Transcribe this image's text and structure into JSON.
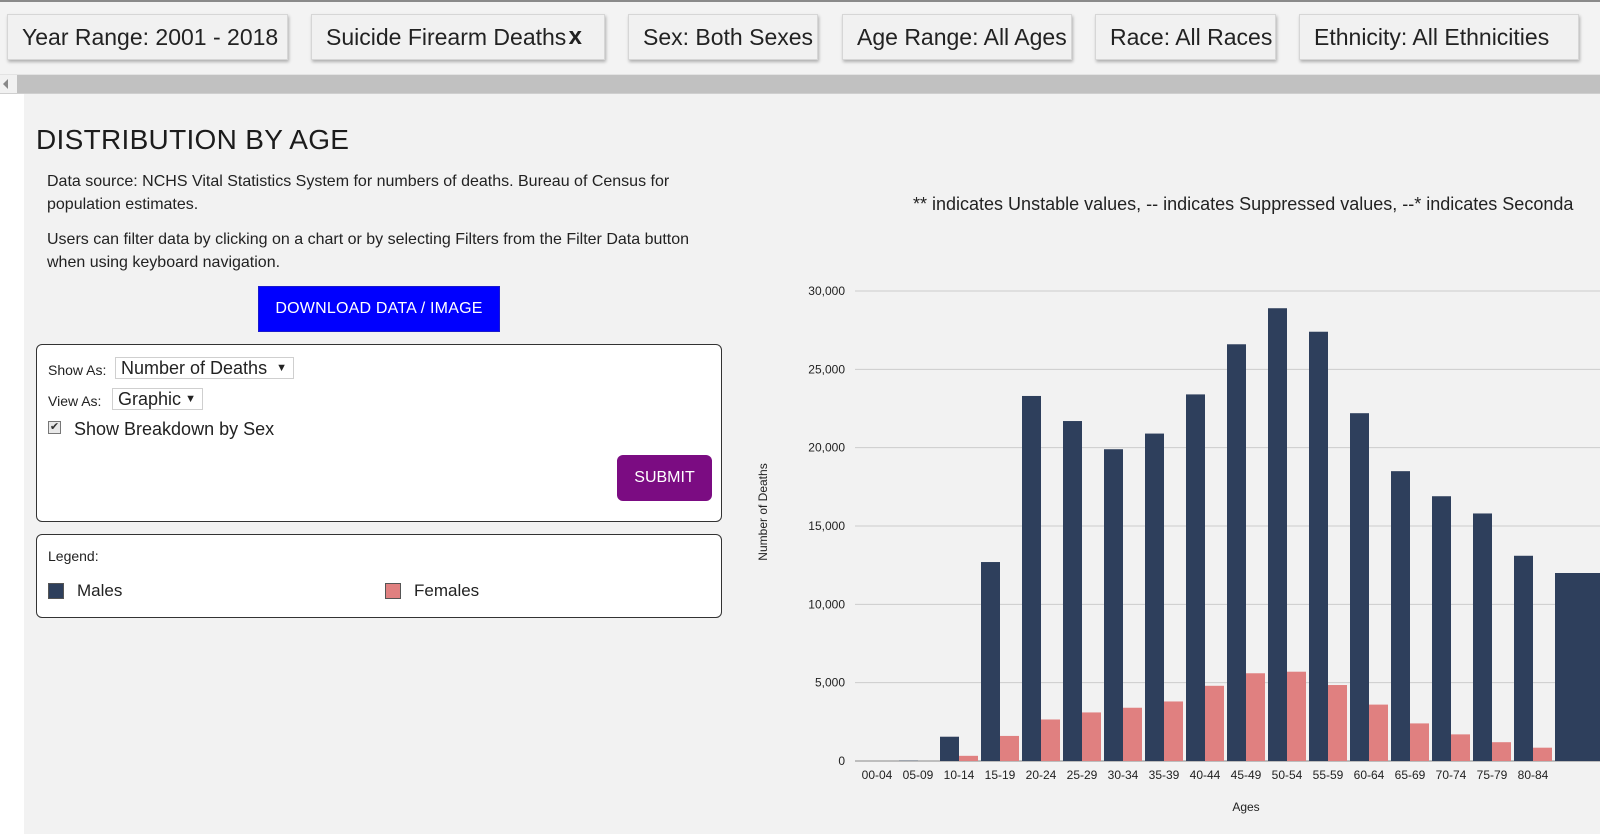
{
  "filters": [
    {
      "label": "Year Range: 2001 - 2018",
      "removable": false
    },
    {
      "label": "Suicide Firearm Deaths",
      "removable": true,
      "remove_glyph": "x"
    },
    {
      "label": "Sex: Both Sexes",
      "removable": false
    },
    {
      "label": "Age Range: All Ages",
      "removable": false
    },
    {
      "label": "Race: All Races",
      "removable": false
    },
    {
      "label": "Ethnicity: All Ethnicities",
      "removable": false
    }
  ],
  "page": {
    "title": "DISTRIBUTION BY AGE",
    "source_text": "Data source: NCHS Vital Statistics System for numbers of deaths. Bureau of Census for population estimates.",
    "filter_help_text": "Users can filter data by clicking on a chart or by selecting Filters from the Filter Data button when using keyboard navigation.",
    "download_label": "DOWNLOAD DATA / IMAGE",
    "note_text": "** indicates Unstable values, -- indicates Suppressed values, --* indicates Seconda"
  },
  "options": {
    "show_as_label": "Show As:",
    "show_as_value": "Number of Deaths",
    "view_as_label": "View As:",
    "view_as_value": "Graphic",
    "breakdown_label": "Show Breakdown by Sex",
    "breakdown_checked": true,
    "submit_label": "SUBMIT"
  },
  "legend": {
    "title": "Legend:",
    "items": [
      {
        "label": "Males",
        "color": "#2e3f5c"
      },
      {
        "label": "Females",
        "color": "#e08080"
      }
    ]
  },
  "chart_data": {
    "type": "bar",
    "xlabel": "Ages",
    "ylabel": "Number of Deaths",
    "ylim": [
      0,
      30000
    ],
    "yticks": [
      "0",
      "5,000",
      "10,000",
      "15,000",
      "20,000",
      "25,000",
      "30,000"
    ],
    "categories": [
      "00-04",
      "05-09",
      "10-14",
      "15-19",
      "20-24",
      "25-29",
      "30-34",
      "35-39",
      "40-44",
      "45-49",
      "50-54",
      "55-59",
      "60-64",
      "65-69",
      "70-74",
      "75-79",
      "80-84"
    ],
    "series": [
      {
        "name": "Males",
        "color": "#2e3f5c",
        "values": [
          0,
          20,
          1550,
          12700,
          23300,
          21700,
          19900,
          20900,
          23400,
          26600,
          28900,
          27400,
          22200,
          18500,
          16900,
          15800,
          13100
        ]
      },
      {
        "name": "Females",
        "color": "#e08080",
        "values": [
          0,
          5,
          330,
          1600,
          2650,
          3100,
          3400,
          3800,
          4800,
          5600,
          5700,
          4850,
          3600,
          2400,
          1700,
          1200,
          850
        ]
      }
    ],
    "partial_next_value": 12000,
    "grid": true,
    "legend_position": "left-panel"
  }
}
